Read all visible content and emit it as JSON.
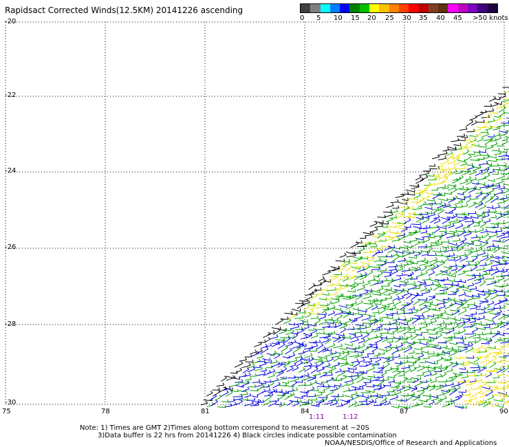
{
  "title": "Rapidsact Corrected Winds(12.5KM) 20141226 ascending",
  "legend": {
    "colors": [
      "#404040",
      "#808080",
      "#00ffff",
      "#0080ff",
      "#0000ff",
      "#008000",
      "#00c000",
      "#ffff00",
      "#ffc000",
      "#ff8000",
      "#ff4000",
      "#ff0000",
      "#c00000",
      "#804020",
      "#603010",
      "#ff00ff",
      "#c000c0",
      "#8000c0",
      "#400080",
      "#200040"
    ],
    "labels": [
      "0",
      "5",
      "10",
      "15",
      "20",
      "25",
      "30",
      "35",
      "40",
      "45",
      ">50 knots"
    ]
  },
  "axes": {
    "lat_labels": [
      "-20",
      "-22",
      "-24",
      "-26",
      "-28",
      "-30"
    ],
    "lon_labels": [
      "75",
      "78",
      "81",
      "84",
      "87",
      "90"
    ]
  },
  "times": [
    "1:11",
    "1:12"
  ],
  "notes": {
    "line1": "Note: 1) Times are GMT 2)Times along bottom correspond to measurement at −20S",
    "line2": "3)Data buffer is 22 hrs from 20141226 4) Black circles indicate possible contamination",
    "credit": "NOAA/NESDIS/Office of Research and Applications"
  }
}
